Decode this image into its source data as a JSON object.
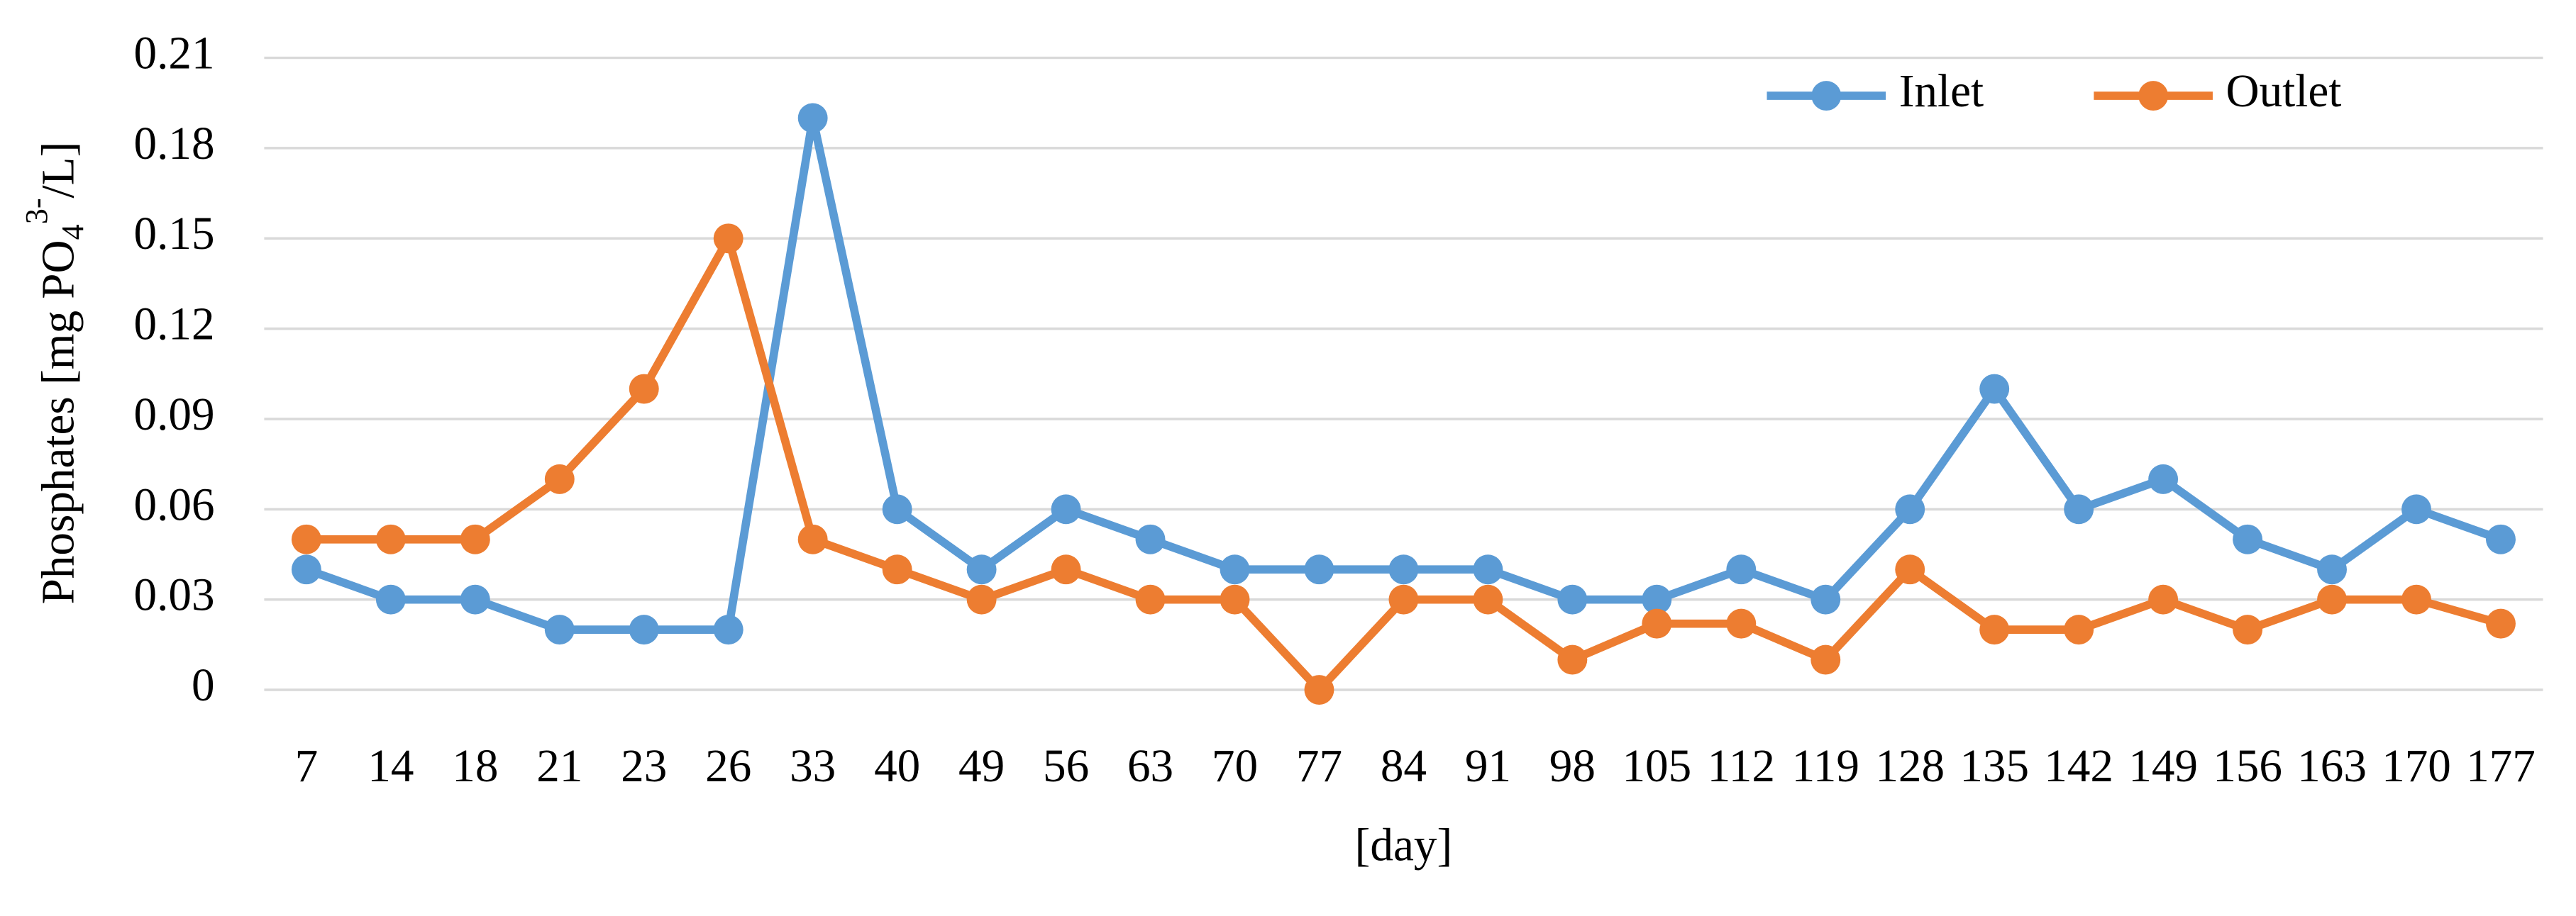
{
  "chart_data": {
    "type": "line",
    "y_label": [
      "Phosphates [mg  PO",
      "4",
      "3-",
      "/L]"
    ],
    "x_label": "[day]",
    "categories": [
      "7",
      "14",
      "18",
      "21",
      "23",
      "26",
      "33",
      "40",
      "49",
      "56",
      "63",
      "70",
      "77",
      "84",
      "91",
      "98",
      "105",
      "112",
      "119",
      "128",
      "135",
      "142",
      "149",
      "156",
      "163",
      "170",
      "177"
    ],
    "series": [
      {
        "name": "Inlet",
        "color": "#5b9bd5",
        "values": [
          0.04,
          0.03,
          0.03,
          0.02,
          0.02,
          0.02,
          0.19,
          0.06,
          0.04,
          0.06,
          0.05,
          0.04,
          0.04,
          0.04,
          0.04,
          0.03,
          0.03,
          0.04,
          0.03,
          0.06,
          0.1,
          0.06,
          0.07,
          0.05,
          0.04,
          0.06,
          0.05
        ]
      },
      {
        "name": "Outlet",
        "color": "#ed7d31",
        "values": [
          0.05,
          0.05,
          0.05,
          0.07,
          0.1,
          0.15,
          0.05,
          0.04,
          0.03,
          0.04,
          0.03,
          0.03,
          0,
          0.03,
          0.03,
          0.01,
          0.022,
          0.022,
          0.01,
          0.04,
          0.02,
          0.02,
          0.03,
          0.02,
          0.03,
          0.03,
          0.022
        ]
      }
    ],
    "ylim": [
      0,
      0.21
    ],
    "yticks": [
      0,
      0.03,
      0.06,
      0.09,
      0.12,
      0.15,
      0.18,
      0.21
    ],
    "grid": true,
    "legend": "upper-right"
  }
}
